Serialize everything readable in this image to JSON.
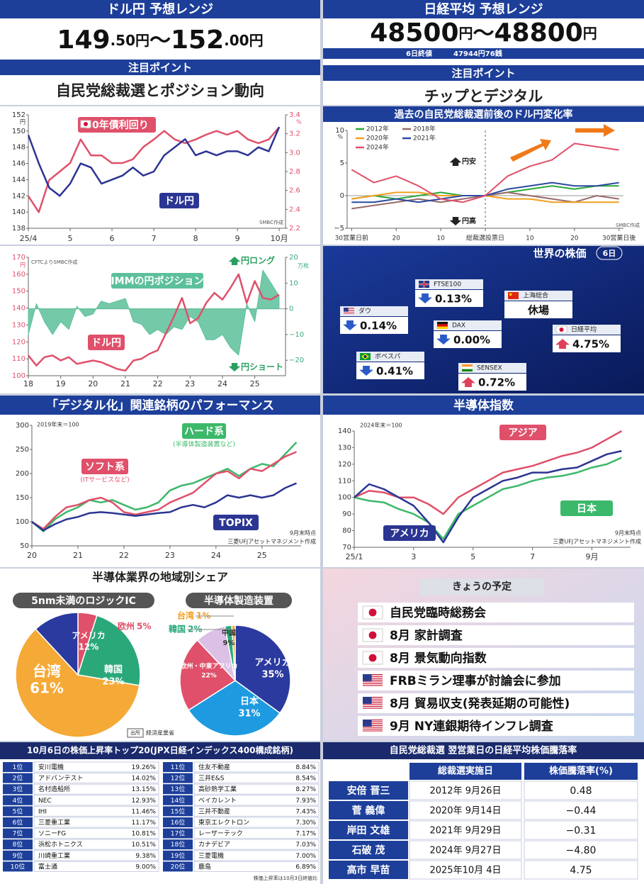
{
  "usdjpy_forecast": {
    "title": "ドル円 予想レンジ",
    "low": "149",
    "low_decimal": ".50円",
    "separator": "～",
    "high": "152",
    "high_decimal": ".00円",
    "point_title": "注目ポイント",
    "point": "自民党総裁選とポジション動向"
  },
  "nikkei_forecast": {
    "title": "日経平均 予想レンジ",
    "low": "48500",
    "low_unit": "円",
    "separator": "～",
    "high": "48800",
    "high_unit": "円",
    "close_label": "6日終値",
    "close_value": "47944円76銭",
    "point_title": "注目ポイント",
    "point": "チップとデジタル"
  },
  "chart_data": [
    {
      "type": "line",
      "x": [
        4,
        4.25,
        4.5,
        4.75,
        5,
        5.25,
        5.5,
        5.75,
        6,
        6.25,
        6.5,
        6.75,
        7,
        7.25,
        7.5,
        7.75,
        8,
        8.25,
        8.5,
        8.75,
        9,
        9.25,
        9.5,
        9.75,
        10
      ],
      "xlim": [
        4,
        10.15
      ],
      "xticks": [
        {
          "value": 4,
          "label": "25/4"
        },
        5,
        6,
        7,
        8,
        9,
        {
          "value": 10,
          "label": "10月"
        }
      ],
      "ylim": [
        138,
        152
      ],
      "yticks": [
        138,
        140,
        142,
        144,
        146,
        148,
        150,
        152
      ],
      "y_unit": "円",
      "y2lim": [
        2.2,
        3.4
      ],
      "y2ticks": [
        2.2,
        2.4,
        2.6,
        2.8,
        {
          "value": 3,
          "label": "3.0"
        },
        3.2,
        3.4
      ],
      "y2_unit": "%",
      "source": "SMBC作成",
      "series": [
        {
          "name": "30年債利回り",
          "color": "#e0506a",
          "axis": "y2",
          "values": [
            2.54,
            2.37,
            2.71,
            2.8,
            2.89,
            3.14,
            2.97,
            2.97,
            2.89,
            2.89,
            2.93,
            3.06,
            3.14,
            3.23,
            3.14,
            3.1,
            3.14,
            3.19,
            3.23,
            3.19,
            3.23,
            3.14,
            3.1,
            3.14,
            3.27
          ]
        },
        {
          "name": "ドル円",
          "color": "#2b3592",
          "values": [
            149.5,
            146,
            143,
            142,
            143.5,
            146,
            145.5,
            143.5,
            144,
            144.5,
            145.5,
            144.5,
            145,
            147,
            148,
            149,
            147,
            147.5,
            147,
            147.5,
            147.5,
            147,
            148,
            147.5,
            150.5
          ]
        }
      ]
    },
    {
      "type": "line",
      "x": [
        18,
        18.25,
        18.5,
        18.75,
        19,
        19.25,
        19.5,
        19.75,
        20,
        20.25,
        20.5,
        20.75,
        21,
        21.25,
        21.5,
        21.75,
        22,
        22.25,
        22.5,
        22.75,
        23,
        23.25,
        23.5,
        23.75,
        24,
        24.25,
        24.5,
        24.75,
        25,
        25.25,
        25.5,
        25.75
      ],
      "xlim": [
        18,
        25.95
      ],
      "xticks": [
        18,
        19,
        20,
        21,
        22,
        23,
        24,
        25
      ],
      "ylim": [
        100,
        170
      ],
      "yticks": [
        100,
        110,
        120,
        130,
        140,
        150,
        160,
        170
      ],
      "y_unit": "円",
      "y2lim": [
        -26,
        20
      ],
      "y2ticks": [
        {
          "value": -20,
          "label": "−20"
        },
        {
          "value": -10,
          "label": "−10"
        },
        0,
        10,
        20
      ],
      "y2_unit": "万枚",
      "source": "CFTCよりSMBC作成",
      "annotations": [
        "円ロング",
        "円ショート"
      ],
      "series": [
        {
          "name": "IMMの円ポジション",
          "color": "#5cc09a",
          "axis": "y2",
          "kind": "area",
          "values": [
            -10,
            2,
            -5,
            -10,
            -5,
            -8,
            1,
            -3,
            -2,
            3,
            2,
            3,
            4,
            -5,
            -6,
            -10,
            -8,
            -10,
            -7,
            -8,
            -3,
            -5,
            -12,
            -12,
            -10,
            -15,
            -18,
            2,
            -5,
            15,
            10,
            5
          ]
        },
        {
          "name": "ドル円",
          "color": "#e0506a",
          "values": [
            112,
            106,
            111,
            112,
            109,
            111,
            107,
            108,
            109,
            108,
            106,
            104,
            103,
            109,
            110,
            113,
            115,
            125,
            135,
            146,
            131,
            134,
            143,
            149,
            145,
            152,
            160,
            143,
            156,
            146,
            145,
            148
          ]
        }
      ]
    },
    {
      "type": "line",
      "title": "過去の自民党総裁選前後のドル円変化率",
      "x": [
        -30,
        -25,
        -20,
        -15,
        -10,
        -5,
        0,
        5,
        10,
        15,
        20,
        25,
        30
      ],
      "xlim": [
        -31,
        31
      ],
      "xticks": [
        {
          "value": -30,
          "label": "30営業日前"
        },
        {
          "value": -20,
          "label": "20"
        },
        {
          "value": -10,
          "label": "10"
        },
        {
          "value": 0,
          "label": "総裁選投票日"
        },
        10,
        20,
        {
          "value": 30,
          "label": "30営業日後"
        }
      ],
      "ylim": [
        -5,
        10
      ],
      "yticks": [
        {
          "value": -5,
          "label": "−5"
        },
        0,
        5,
        10
      ],
      "y_unit": "%",
      "legend": "top-left",
      "source": "SMBC作成",
      "annotations": [
        "円安",
        "円高"
      ],
      "series": [
        {
          "name": "2012年",
          "color": "#2aa83a",
          "values": [
            -0.5,
            0,
            -0.5,
            0,
            0.5,
            0,
            0,
            0.5,
            1,
            1.5,
            1,
            1.5,
            1.5
          ]
        },
        {
          "name": "2018年",
          "color": "#9a6a6a",
          "values": [
            -2,
            -1.5,
            -1,
            -0.5,
            -1,
            -0.5,
            0,
            0.5,
            0,
            -0.5,
            -1,
            0,
            -0.5
          ]
        },
        {
          "name": "2020年",
          "color": "#f0a020",
          "values": [
            -0.5,
            0,
            0.5,
            0.5,
            0,
            0,
            0,
            -0.5,
            -0.5,
            -1,
            -1,
            -1,
            -1
          ]
        },
        {
          "name": "2021年",
          "color": "#2b4aa0",
          "values": [
            -1,
            -1,
            -0.5,
            -1,
            -0.5,
            0,
            0,
            1,
            1.5,
            2,
            1.5,
            1.5,
            2
          ]
        },
        {
          "name": "2024年",
          "color": "#e0506a",
          "values": [
            4,
            2,
            3,
            1.5,
            -0.5,
            -1,
            0,
            3,
            4.5,
            5.5,
            8,
            7.5,
            7
          ]
        }
      ]
    },
    {
      "type": "line",
      "title": "「デジタル化」関連銘柄のパフォーマンス",
      "note": "2019年末＝100",
      "notes": [
        "9月末時点",
        "三菱UFJアセットマネジメント作成"
      ],
      "x": [
        20,
        20.25,
        20.5,
        20.75,
        21,
        21.25,
        21.5,
        21.75,
        22,
        22.25,
        22.5,
        22.75,
        23,
        23.25,
        23.5,
        23.75,
        24,
        24.25,
        24.5,
        24.75,
        25,
        25.25,
        25.5,
        25.75
      ],
      "xlim": [
        20,
        25.85
      ],
      "xticks": [
        20,
        21,
        22,
        23,
        24,
        25
      ],
      "ylim": [
        50,
        300
      ],
      "yticks": [
        50,
        100,
        150,
        200,
        250,
        300
      ],
      "series": [
        {
          "name": "ハード系",
          "note": "(半導体製造装置など)",
          "color": "#3cb86a",
          "values": [
            100,
            80,
            105,
            120,
            130,
            145,
            140,
            145,
            135,
            125,
            130,
            140,
            165,
            175,
            180,
            190,
            200,
            210,
            195,
            210,
            220,
            215,
            240,
            265
          ]
        },
        {
          "name": "ソフト系",
          "note": "(ITサービスなど)",
          "color": "#e0506a",
          "values": [
            100,
            85,
            110,
            130,
            135,
            145,
            150,
            140,
            120,
            115,
            120,
            125,
            140,
            150,
            160,
            180,
            200,
            205,
            190,
            210,
            205,
            220,
            235,
            245
          ]
        },
        {
          "name": "TOPIX",
          "color": "#2b3592",
          "values": [
            100,
            82,
            95,
            105,
            110,
            118,
            120,
            118,
            115,
            112,
            115,
            118,
            120,
            130,
            135,
            130,
            140,
            155,
            150,
            155,
            150,
            155,
            170,
            180
          ]
        }
      ]
    },
    {
      "type": "line",
      "title": "半導体指数",
      "note": "2024年末＝100",
      "notes": [
        "9月末時点",
        "三菱UFJアセットマネジメント作成"
      ],
      "x": [
        1,
        1.5,
        2,
        2.5,
        3,
        3.5,
        4,
        4.5,
        5,
        5.5,
        6,
        6.5,
        7,
        7.5,
        8,
        8.5,
        9,
        9.5,
        10
      ],
      "xlim": [
        1,
        10.3
      ],
      "xticks": [
        {
          "value": 1,
          "label": "25/1"
        },
        3,
        5,
        7,
        {
          "value": 9,
          "label": "9月"
        }
      ],
      "ylim": [
        70,
        140
      ],
      "yticks": [
        70,
        80,
        90,
        100,
        110,
        120,
        130,
        140
      ],
      "series": [
        {
          "name": "アジア",
          "color": "#e0506a",
          "values": [
            100,
            104,
            103,
            100,
            100,
            96,
            90,
            100,
            105,
            110,
            115,
            117,
            119,
            122,
            125,
            127,
            130,
            135,
            140
          ]
        },
        {
          "name": "日本",
          "color": "#3cb86a",
          "values": [
            100,
            98,
            97,
            93,
            90,
            85,
            75,
            90,
            95,
            100,
            105,
            107,
            110,
            112,
            113,
            115,
            118,
            120,
            124
          ]
        },
        {
          "name": "アメリカ",
          "color": "#2b3592",
          "values": [
            100,
            108,
            105,
            100,
            95,
            85,
            73,
            88,
            100,
            105,
            110,
            112,
            115,
            115,
            117,
            118,
            122,
            126,
            128
          ]
        }
      ]
    },
    {
      "type": "pie",
      "title": "5nm未満のロジックIC",
      "categories": [
        "欧州",
        "韓国",
        "台湾",
        "アメリカ"
      ],
      "values": [
        5,
        23,
        61,
        12
      ],
      "value_labels": [
        "5%",
        "23%",
        "61%",
        "12%"
      ],
      "colors": [
        "#e0506a",
        "#2aa87a",
        "#f5a936",
        "#2b3a9e"
      ]
    },
    {
      "type": "pie",
      "title": "半導体製造装置",
      "categories": [
        "アメリカ",
        "日本",
        "欧州・中東アフリカ",
        "中国",
        "韓国",
        "台湾"
      ],
      "values": [
        35,
        31,
        22,
        9,
        2,
        1
      ],
      "value_labels": [
        "35%",
        "31%",
        "22%",
        "9%",
        "2%",
        "1%"
      ],
      "colors": [
        "#2b3a9e",
        "#1e9be0",
        "#e0506a",
        "#dcc0e6",
        "#2aa87a",
        "#f5a936"
      ]
    }
  ],
  "semiconductor_share": {
    "title": "半導体業界の地域別シェア",
    "source_label": "出所",
    "source": "経済産業省"
  },
  "world_stocks": {
    "title": "世界の株価",
    "date": "6日",
    "markets": [
      {
        "name": "ダウ",
        "change": "0.14%",
        "direction": "down",
        "flag": "us"
      },
      {
        "name": "FTSE100",
        "change": "0.13%",
        "direction": "down",
        "flag": "gb"
      },
      {
        "name": "上海総合",
        "change": "休場",
        "direction": "none",
        "flag": "cn"
      },
      {
        "name": "DAX",
        "change": "0.00%",
        "direction": "down",
        "flag": "de"
      },
      {
        "name": "日経平均",
        "change": "4.75%",
        "direction": "up",
        "flag": "jp"
      },
      {
        "name": "ボベスパ",
        "change": "0.41%",
        "direction": "down",
        "flag": "br"
      },
      {
        "name": "SENSEX",
        "change": "0.72%",
        "direction": "up",
        "flag": "in"
      }
    ]
  },
  "schedule": {
    "title": "きょうの予定",
    "items": [
      {
        "flag": "jp",
        "text": "自民党臨時総務会"
      },
      {
        "flag": "jp",
        "text": "8月 家計調査"
      },
      {
        "flag": "jp",
        "text": "8月 景気動向指数"
      },
      {
        "flag": "us",
        "text": "FRBミラン理事が討論会に参加"
      },
      {
        "flag": "us",
        "text": "8月 貿易収支(発表延期の可能性)"
      },
      {
        "flag": "us",
        "text": "9月 NY連銀期待インフレ調査"
      }
    ]
  },
  "top20": {
    "title": "10月6日の株価上昇率トップ20(JPX日経インデックス400構成銘柄)",
    "rows": [
      [
        "1位",
        "安川電機",
        "19.26%"
      ],
      [
        "2位",
        "アドバンテスト",
        "14.02%"
      ],
      [
        "3位",
        "名村造船所",
        "13.15%"
      ],
      [
        "4位",
        "NEC",
        "12.93%"
      ],
      [
        "5位",
        "IHI",
        "11.46%"
      ],
      [
        "6位",
        "三菱重工業",
        "11.17%"
      ],
      [
        "7位",
        "ソニーFG",
        "10.81%"
      ],
      [
        "8位",
        "浜松ホトニクス",
        "10.51%"
      ],
      [
        "9位",
        "川崎重工業",
        "9.38%"
      ],
      [
        "10位",
        "富士通",
        "9.00%"
      ],
      [
        "11位",
        "住友不動産",
        "8.84%"
      ],
      [
        "12位",
        "三井E&S",
        "8.54%"
      ],
      [
        "13位",
        "高砂熱学工業",
        "8.27%"
      ],
      [
        "14位",
        "ベイカレント",
        "7.93%"
      ],
      [
        "15位",
        "三井不動産",
        "7.43%"
      ],
      [
        "16位",
        "東京エレクトロン",
        "7.30%"
      ],
      [
        "17位",
        "レーザーテック",
        "7.17%"
      ],
      [
        "18位",
        "カナデビア",
        "7.03%"
      ],
      [
        "19位",
        "三菱電機",
        "7.00%"
      ],
      [
        "20位",
        "鹿島",
        "6.89%"
      ]
    ],
    "note": "株価上昇率は10月3日終値比"
  },
  "ldp_table": {
    "title": "自民党総裁選 翌営業日の日経平均株価騰落率",
    "headers": [
      "総裁選実施日",
      "株価騰落率(%)"
    ],
    "rows": [
      [
        "安倍 晋三",
        "2012年 9月26日",
        "0.48"
      ],
      [
        "菅 義偉",
        "2020年 9月14日",
        "−0.44"
      ],
      [
        "岸田 文雄",
        "2021年 9月29日",
        "−0.31"
      ],
      [
        "石破 茂",
        "2024年 9月27日",
        "−4.80"
      ],
      [
        "高市 早苗",
        "2025年10月 4日",
        "4.75"
      ]
    ]
  }
}
